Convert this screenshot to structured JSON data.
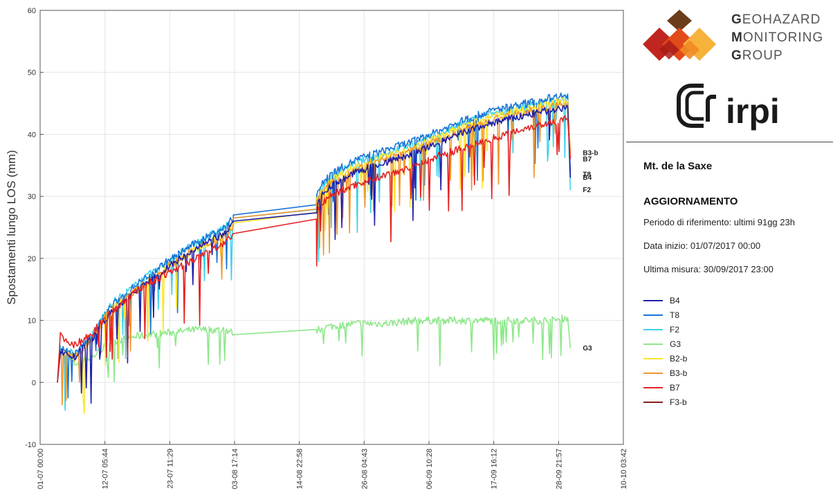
{
  "chart_data": {
    "type": "line",
    "title": "",
    "xlabel": "",
    "ylabel": "Spostamenti lungo LOS (mm)",
    "ylim": [
      -10,
      60
    ],
    "yticks": [
      -10,
      0,
      10,
      20,
      30,
      40,
      50,
      60
    ],
    "xlim": [
      "2017-07-01 00:00",
      "2017-10-10 03:42"
    ],
    "xticks": [
      {
        "time": "2017-07-01 00:00",
        "label": "01-07 00:00"
      },
      {
        "time": "2017-07-12 05:44",
        "label": "12-07 05:44"
      },
      {
        "time": "2017-07-23 11:29",
        "label": "23-07 11:29"
      },
      {
        "time": "2017-08-03 17:14",
        "label": "03-08 17:14"
      },
      {
        "time": "2017-08-14 22:58",
        "label": "14-08 22:58"
      },
      {
        "time": "2017-08-26 04:43",
        "label": "26-08 04:43"
      },
      {
        "time": "2017-09-06 10:28",
        "label": "06-09 10:28"
      },
      {
        "time": "2017-09-17 16:12",
        "label": "17-09 16:12"
      },
      {
        "time": "2017-09-28 21:57",
        "label": "28-09 21:57"
      },
      {
        "time": "2017-10-10 03:42",
        "label": "10-10 03:42"
      }
    ],
    "grid": true,
    "legend_position": "right",
    "series": [
      {
        "name": "B4",
        "color": "#1f1fa8",
        "end_label": "B4",
        "points": [
          [
            "2017-07-04 00:00",
            0
          ],
          [
            "2017-07-04 12:00",
            5
          ],
          [
            "2017-07-07 00:00",
            4
          ],
          [
            "2017-07-10 00:00",
            7
          ],
          [
            "2017-07-13 00:00",
            11
          ],
          [
            "2017-07-18 00:00",
            15
          ],
          [
            "2017-07-23 00:00",
            18.5
          ],
          [
            "2017-07-28 00:00",
            21.5
          ],
          [
            "2017-08-02 00:00",
            24
          ],
          [
            "2017-08-03 12:00",
            25.5
          ],
          [
            "2017-08-03 12:00",
            26
          ],
          [
            "2017-08-17 22:00",
            27.8
          ],
          [
            "2017-08-17 23:00",
            29
          ],
          [
            "2017-08-20 00:00",
            31.5
          ],
          [
            "2017-08-25 00:00",
            34
          ],
          [
            "2017-08-30 00:00",
            35.5
          ],
          [
            "2017-09-04 00:00",
            37
          ],
          [
            "2017-09-08 00:00",
            38.5
          ],
          [
            "2017-09-13 00:00",
            40.5
          ],
          [
            "2017-09-18 00:00",
            42
          ],
          [
            "2017-09-23 00:00",
            43
          ],
          [
            "2017-09-28 00:00",
            44
          ],
          [
            "2017-09-30 12:00",
            44.5
          ],
          [
            "2017-09-30 23:00",
            33
          ]
        ]
      },
      {
        "name": "T8",
        "color": "#1b74d6",
        "end_label": "T8",
        "points": [
          [
            "2017-07-04 00:00",
            0
          ],
          [
            "2017-07-04 12:00",
            5.5
          ],
          [
            "2017-07-07 00:00",
            4.5
          ],
          [
            "2017-07-10 00:00",
            7.5
          ],
          [
            "2017-07-13 00:00",
            12
          ],
          [
            "2017-07-18 00:00",
            16
          ],
          [
            "2017-07-23 00:00",
            19.5
          ],
          [
            "2017-07-28 00:00",
            22.5
          ],
          [
            "2017-08-02 00:00",
            25
          ],
          [
            "2017-08-03 12:00",
            26.5
          ],
          [
            "2017-08-03 12:00",
            27
          ],
          [
            "2017-08-17 22:00",
            29.2
          ],
          [
            "2017-08-17 23:00",
            30.5
          ],
          [
            "2017-08-20 00:00",
            33.5
          ],
          [
            "2017-08-25 00:00",
            36
          ],
          [
            "2017-08-30 00:00",
            37.5
          ],
          [
            "2017-09-04 00:00",
            39
          ],
          [
            "2017-09-08 00:00",
            40.5
          ],
          [
            "2017-09-13 00:00",
            42.5
          ],
          [
            "2017-09-18 00:00",
            44
          ],
          [
            "2017-09-23 00:00",
            45
          ],
          [
            "2017-09-28 00:00",
            46
          ],
          [
            "2017-09-30 12:00",
            46.5
          ],
          [
            "2017-09-30 23:00",
            33.5
          ]
        ]
      },
      {
        "name": "F2",
        "color": "#3fd2ea",
        "end_label": "F2",
        "points": [
          [
            "2017-07-04 00:00",
            0
          ],
          [
            "2017-07-04 12:00",
            5.5
          ],
          [
            "2017-07-07 00:00",
            4.5
          ],
          [
            "2017-07-10 00:00",
            7.5
          ],
          [
            "2017-07-13 00:00",
            12.5
          ],
          [
            "2017-07-18 00:00",
            16
          ],
          [
            "2017-07-23 00:00",
            19.5
          ],
          [
            "2017-07-28 00:00",
            22.5
          ],
          [
            "2017-08-02 00:00",
            25
          ],
          [
            "2017-08-03 12:00",
            26
          ],
          [
            "2017-08-03 12:00",
            26.5
          ],
          [
            "2017-08-17 22:00",
            28.5
          ],
          [
            "2017-08-17 23:00",
            30
          ],
          [
            "2017-08-20 00:00",
            33
          ],
          [
            "2017-08-25 00:00",
            35.5
          ],
          [
            "2017-08-30 00:00",
            37
          ],
          [
            "2017-09-04 00:00",
            38.5
          ],
          [
            "2017-09-08 00:00",
            40
          ],
          [
            "2017-09-13 00:00",
            42
          ],
          [
            "2017-09-18 00:00",
            43.5
          ],
          [
            "2017-09-23 00:00",
            44.5
          ],
          [
            "2017-09-28 00:00",
            45.5
          ],
          [
            "2017-09-30 12:00",
            46
          ],
          [
            "2017-09-30 23:00",
            31
          ]
        ]
      },
      {
        "name": "G3",
        "color": "#8ee88a",
        "end_label": "G3",
        "points": [
          [
            "2017-07-04 00:00",
            0
          ],
          [
            "2017-07-04 12:00",
            5
          ],
          [
            "2017-07-07 00:00",
            3
          ],
          [
            "2017-07-10 00:00",
            4
          ],
          [
            "2017-07-13 00:00",
            6.5
          ],
          [
            "2017-07-18 00:00",
            7.5
          ],
          [
            "2017-07-23 00:00",
            8
          ],
          [
            "2017-07-28 00:00",
            8.5
          ],
          [
            "2017-08-02 00:00",
            8.5
          ],
          [
            "2017-08-03 12:00",
            8
          ],
          [
            "2017-08-03 12:00",
            7.7
          ],
          [
            "2017-08-17 22:00",
            8
          ],
          [
            "2017-08-17 23:00",
            8.5
          ],
          [
            "2017-08-20 00:00",
            9
          ],
          [
            "2017-08-25 00:00",
            9.5
          ],
          [
            "2017-08-30 00:00",
            9.5
          ],
          [
            "2017-09-04 00:00",
            10
          ],
          [
            "2017-09-08 00:00",
            10
          ],
          [
            "2017-09-13 00:00",
            10
          ],
          [
            "2017-09-18 00:00",
            10
          ],
          [
            "2017-09-23 00:00",
            10
          ],
          [
            "2017-09-28 00:00",
            10
          ],
          [
            "2017-09-30 12:00",
            10.5
          ],
          [
            "2017-09-30 23:00",
            5.5
          ]
        ]
      },
      {
        "name": "B2-b",
        "color": "#ffe52a",
        "end_label": "",
        "points": [
          [
            "2017-07-04 00:00",
            0
          ],
          [
            "2017-07-04 12:00",
            5
          ],
          [
            "2017-07-07 00:00",
            4
          ],
          [
            "2017-07-10 00:00",
            7
          ],
          [
            "2017-07-13 00:00",
            11.5
          ],
          [
            "2017-07-18 00:00",
            15
          ],
          [
            "2017-07-23 00:00",
            18.5
          ],
          [
            "2017-07-28 00:00",
            21.5
          ],
          [
            "2017-08-02 00:00",
            24
          ],
          [
            "2017-08-03 12:00",
            25
          ],
          [
            "2017-08-03 12:00",
            25.7
          ],
          [
            "2017-08-17 22:00",
            28
          ],
          [
            "2017-08-17 23:00",
            29.5
          ],
          [
            "2017-08-20 00:00",
            32.5
          ],
          [
            "2017-08-25 00:00",
            35
          ],
          [
            "2017-08-30 00:00",
            36.5
          ],
          [
            "2017-09-04 00:00",
            38
          ],
          [
            "2017-09-08 00:00",
            39.5
          ],
          [
            "2017-09-13 00:00",
            41.5
          ],
          [
            "2017-09-18 00:00",
            43
          ],
          [
            "2017-09-23 00:00",
            44
          ],
          [
            "2017-09-28 00:00",
            45
          ],
          [
            "2017-09-30 12:00",
            45.5
          ],
          [
            "2017-09-30 23:00",
            36.5
          ]
        ]
      },
      {
        "name": "B3-b",
        "color": "#f0962a",
        "end_label": "B3-b",
        "points": [
          [
            "2017-07-04 00:00",
            0
          ],
          [
            "2017-07-04 12:00",
            5
          ],
          [
            "2017-07-07 00:00",
            4
          ],
          [
            "2017-07-10 00:00",
            7
          ],
          [
            "2017-07-13 00:00",
            11.5
          ],
          [
            "2017-07-18 00:00",
            15
          ],
          [
            "2017-07-23 00:00",
            18.5
          ],
          [
            "2017-07-28 00:00",
            21.5
          ],
          [
            "2017-08-02 00:00",
            23.5
          ],
          [
            "2017-08-03 12:00",
            25
          ],
          [
            "2017-08-03 12:00",
            26.5
          ],
          [
            "2017-08-17 22:00",
            28.3
          ],
          [
            "2017-08-17 23:00",
            29.5
          ],
          [
            "2017-08-20 00:00",
            32
          ],
          [
            "2017-08-25 00:00",
            34.5
          ],
          [
            "2017-08-30 00:00",
            36
          ],
          [
            "2017-09-04 00:00",
            37.5
          ],
          [
            "2017-09-08 00:00",
            39
          ],
          [
            "2017-09-13 00:00",
            41
          ],
          [
            "2017-09-18 00:00",
            42.5
          ],
          [
            "2017-09-23 00:00",
            43.5
          ],
          [
            "2017-09-28 00:00",
            44.5
          ],
          [
            "2017-09-30 12:00",
            45
          ],
          [
            "2017-09-30 23:00",
            37
          ]
        ]
      },
      {
        "name": "B7",
        "color": "#e52222",
        "end_label": "B7",
        "points": [
          [
            "2017-07-04 00:00",
            0
          ],
          [
            "2017-07-04 12:00",
            7.5
          ],
          [
            "2017-07-07 00:00",
            6
          ],
          [
            "2017-07-10 00:00",
            8
          ],
          [
            "2017-07-13 00:00",
            11
          ],
          [
            "2017-07-18 00:00",
            15
          ],
          [
            "2017-07-23 00:00",
            17.5
          ],
          [
            "2017-07-28 00:00",
            20
          ],
          [
            "2017-08-02 00:00",
            22.5
          ],
          [
            "2017-08-03 12:00",
            23.5
          ],
          [
            "2017-08-03 12:00",
            24
          ],
          [
            "2017-08-17 22:00",
            26.2
          ],
          [
            "2017-08-17 23:00",
            27.5
          ],
          [
            "2017-08-20 00:00",
            30
          ],
          [
            "2017-08-25 00:00",
            32
          ],
          [
            "2017-08-30 00:00",
            33.5
          ],
          [
            "2017-09-04 00:00",
            35
          ],
          [
            "2017-09-08 00:00",
            36.5
          ],
          [
            "2017-09-13 00:00",
            38
          ],
          [
            "2017-09-18 00:00",
            39.5
          ],
          [
            "2017-09-23 00:00",
            41
          ],
          [
            "2017-09-28 00:00",
            42
          ],
          [
            "2017-09-30 12:00",
            42.5
          ],
          [
            "2017-09-30 23:00",
            36
          ]
        ]
      },
      {
        "name": "F3-b",
        "color": "#8a1e1e",
        "end_label": "",
        "points": []
      }
    ],
    "extra_end_labels": [
      "T8"
    ]
  },
  "panel": {
    "logo_gmg_lines": [
      {
        "initial": "G",
        "rest": "EOHAZARD"
      },
      {
        "initial": "M",
        "rest": "ONITORING"
      },
      {
        "initial": "G",
        "rest": "ROUP"
      }
    ],
    "logo_irpi_text": "irpi",
    "site_title": "Mt. de la Saxe",
    "update_heading": "AGGIORNAMENTO",
    "period_line": "Periodo di riferimento: ultimi 91gg 23h",
    "start_line": "Data inizio: 01/07/2017 00:00",
    "last_line": "Ultima misura:  30/09/2017 23:00"
  }
}
